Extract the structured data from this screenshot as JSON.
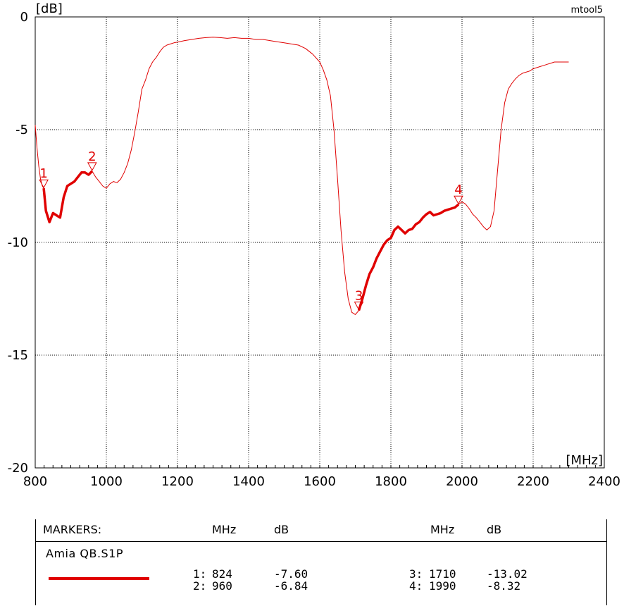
{
  "chart_data": {
    "type": "line",
    "ylabel": "[dB]",
    "xlabel": "[MHz]",
    "watermark": "mtool5",
    "xlim": [
      800,
      2400
    ],
    "ylim": [
      -20,
      0
    ],
    "x_ticks": [
      800,
      1000,
      1200,
      1400,
      1600,
      1800,
      2000,
      2200,
      2400
    ],
    "y_ticks": [
      0,
      -5,
      -10,
      -15,
      -20
    ],
    "grid": true,
    "series": [
      {
        "name": "Amia QB.S1P",
        "color": "#e00000",
        "x": [
          800,
          805,
          810,
          815,
          820,
          824,
          830,
          840,
          850,
          860,
          870,
          880,
          890,
          900,
          910,
          920,
          930,
          940,
          950,
          960,
          970,
          980,
          990,
          1000,
          1010,
          1020,
          1030,
          1040,
          1050,
          1060,
          1070,
          1080,
          1090,
          1100,
          1110,
          1120,
          1130,
          1140,
          1150,
          1160,
          1170,
          1180,
          1190,
          1200,
          1220,
          1240,
          1260,
          1280,
          1300,
          1320,
          1340,
          1360,
          1380,
          1400,
          1420,
          1440,
          1460,
          1480,
          1500,
          1520,
          1540,
          1560,
          1580,
          1600,
          1610,
          1620,
          1630,
          1640,
          1650,
          1660,
          1670,
          1680,
          1690,
          1700,
          1710,
          1720,
          1730,
          1740,
          1750,
          1760,
          1770,
          1780,
          1790,
          1800,
          1810,
          1820,
          1830,
          1840,
          1850,
          1860,
          1870,
          1880,
          1890,
          1900,
          1910,
          1920,
          1930,
          1940,
          1950,
          1960,
          1970,
          1980,
          1990,
          2000,
          2010,
          2020,
          2030,
          2040,
          2050,
          2060,
          2070,
          2080,
          2090,
          2100,
          2110,
          2120,
          2130,
          2140,
          2150,
          2160,
          2170,
          2180,
          2190,
          2200,
          2210,
          2220,
          2230,
          2240,
          2250,
          2260,
          2270,
          2280,
          2290,
          2300
        ],
        "values": [
          -4.8,
          -5.8,
          -6.6,
          -7.2,
          -7.5,
          -7.6,
          -8.6,
          -9.1,
          -8.7,
          -8.8,
          -8.9,
          -8.0,
          -7.5,
          -7.4,
          -7.3,
          -7.1,
          -6.9,
          -6.9,
          -7.0,
          -6.84,
          -7.1,
          -7.3,
          -7.5,
          -7.6,
          -7.4,
          -7.3,
          -7.35,
          -7.2,
          -6.9,
          -6.5,
          -5.9,
          -5.1,
          -4.2,
          -3.2,
          -2.8,
          -2.3,
          -2.0,
          -1.8,
          -1.55,
          -1.35,
          -1.25,
          -1.2,
          -1.15,
          -1.12,
          -1.05,
          -1.0,
          -0.95,
          -0.92,
          -0.9,
          -0.92,
          -0.95,
          -0.92,
          -0.95,
          -0.95,
          -1.0,
          -1.0,
          -1.05,
          -1.1,
          -1.15,
          -1.2,
          -1.25,
          -1.4,
          -1.65,
          -2.0,
          -2.35,
          -2.8,
          -3.5,
          -5.0,
          -7.2,
          -9.5,
          -11.3,
          -12.5,
          -13.1,
          -13.2,
          -13.02,
          -12.5,
          -11.9,
          -11.4,
          -11.1,
          -10.7,
          -10.4,
          -10.1,
          -9.9,
          -9.8,
          -9.45,
          -9.3,
          -9.45,
          -9.6,
          -9.45,
          -9.4,
          -9.2,
          -9.1,
          -8.9,
          -8.75,
          -8.65,
          -8.8,
          -8.75,
          -8.7,
          -8.6,
          -8.55,
          -8.5,
          -8.45,
          -8.32,
          -8.2,
          -8.3,
          -8.5,
          -8.75,
          -8.9,
          -9.1,
          -9.3,
          -9.45,
          -9.3,
          -8.6,
          -6.8,
          -5.0,
          -3.8,
          -3.2,
          -2.95,
          -2.75,
          -2.6,
          -2.5,
          -2.45,
          -2.4,
          -2.3,
          -2.25,
          -2.2,
          -2.15,
          -2.1,
          -2.05,
          -2.0,
          -2.0,
          -2.0,
          -2.0,
          -2.0
        ]
      }
    ],
    "highlight_ranges": [
      [
        824,
        960
      ],
      [
        1710,
        1990
      ]
    ],
    "markers": [
      {
        "id": "1",
        "x": 824,
        "y": -7.6
      },
      {
        "id": "2",
        "x": 960,
        "y": -6.84
      },
      {
        "id": "3",
        "x": 1710,
        "y": -13.02
      },
      {
        "id": "4",
        "x": 1990,
        "y": -8.32
      }
    ]
  },
  "table": {
    "header": "MARKERS:",
    "col_mhz": "MHz",
    "col_db": "dB",
    "col_mhz2": "MHz",
    "col_db2": "dB",
    "trace_name": "Amia QB.S1P",
    "rows": [
      {
        "label": "1:",
        "mhz": "824",
        "db": "-7.60"
      },
      {
        "label": "2:",
        "mhz": "960",
        "db": "-6.84"
      },
      {
        "label": "3:",
        "mhz": "1710",
        "db": "-13.02"
      },
      {
        "label": "4:",
        "mhz": "1990",
        "db": "-8.32"
      }
    ]
  }
}
